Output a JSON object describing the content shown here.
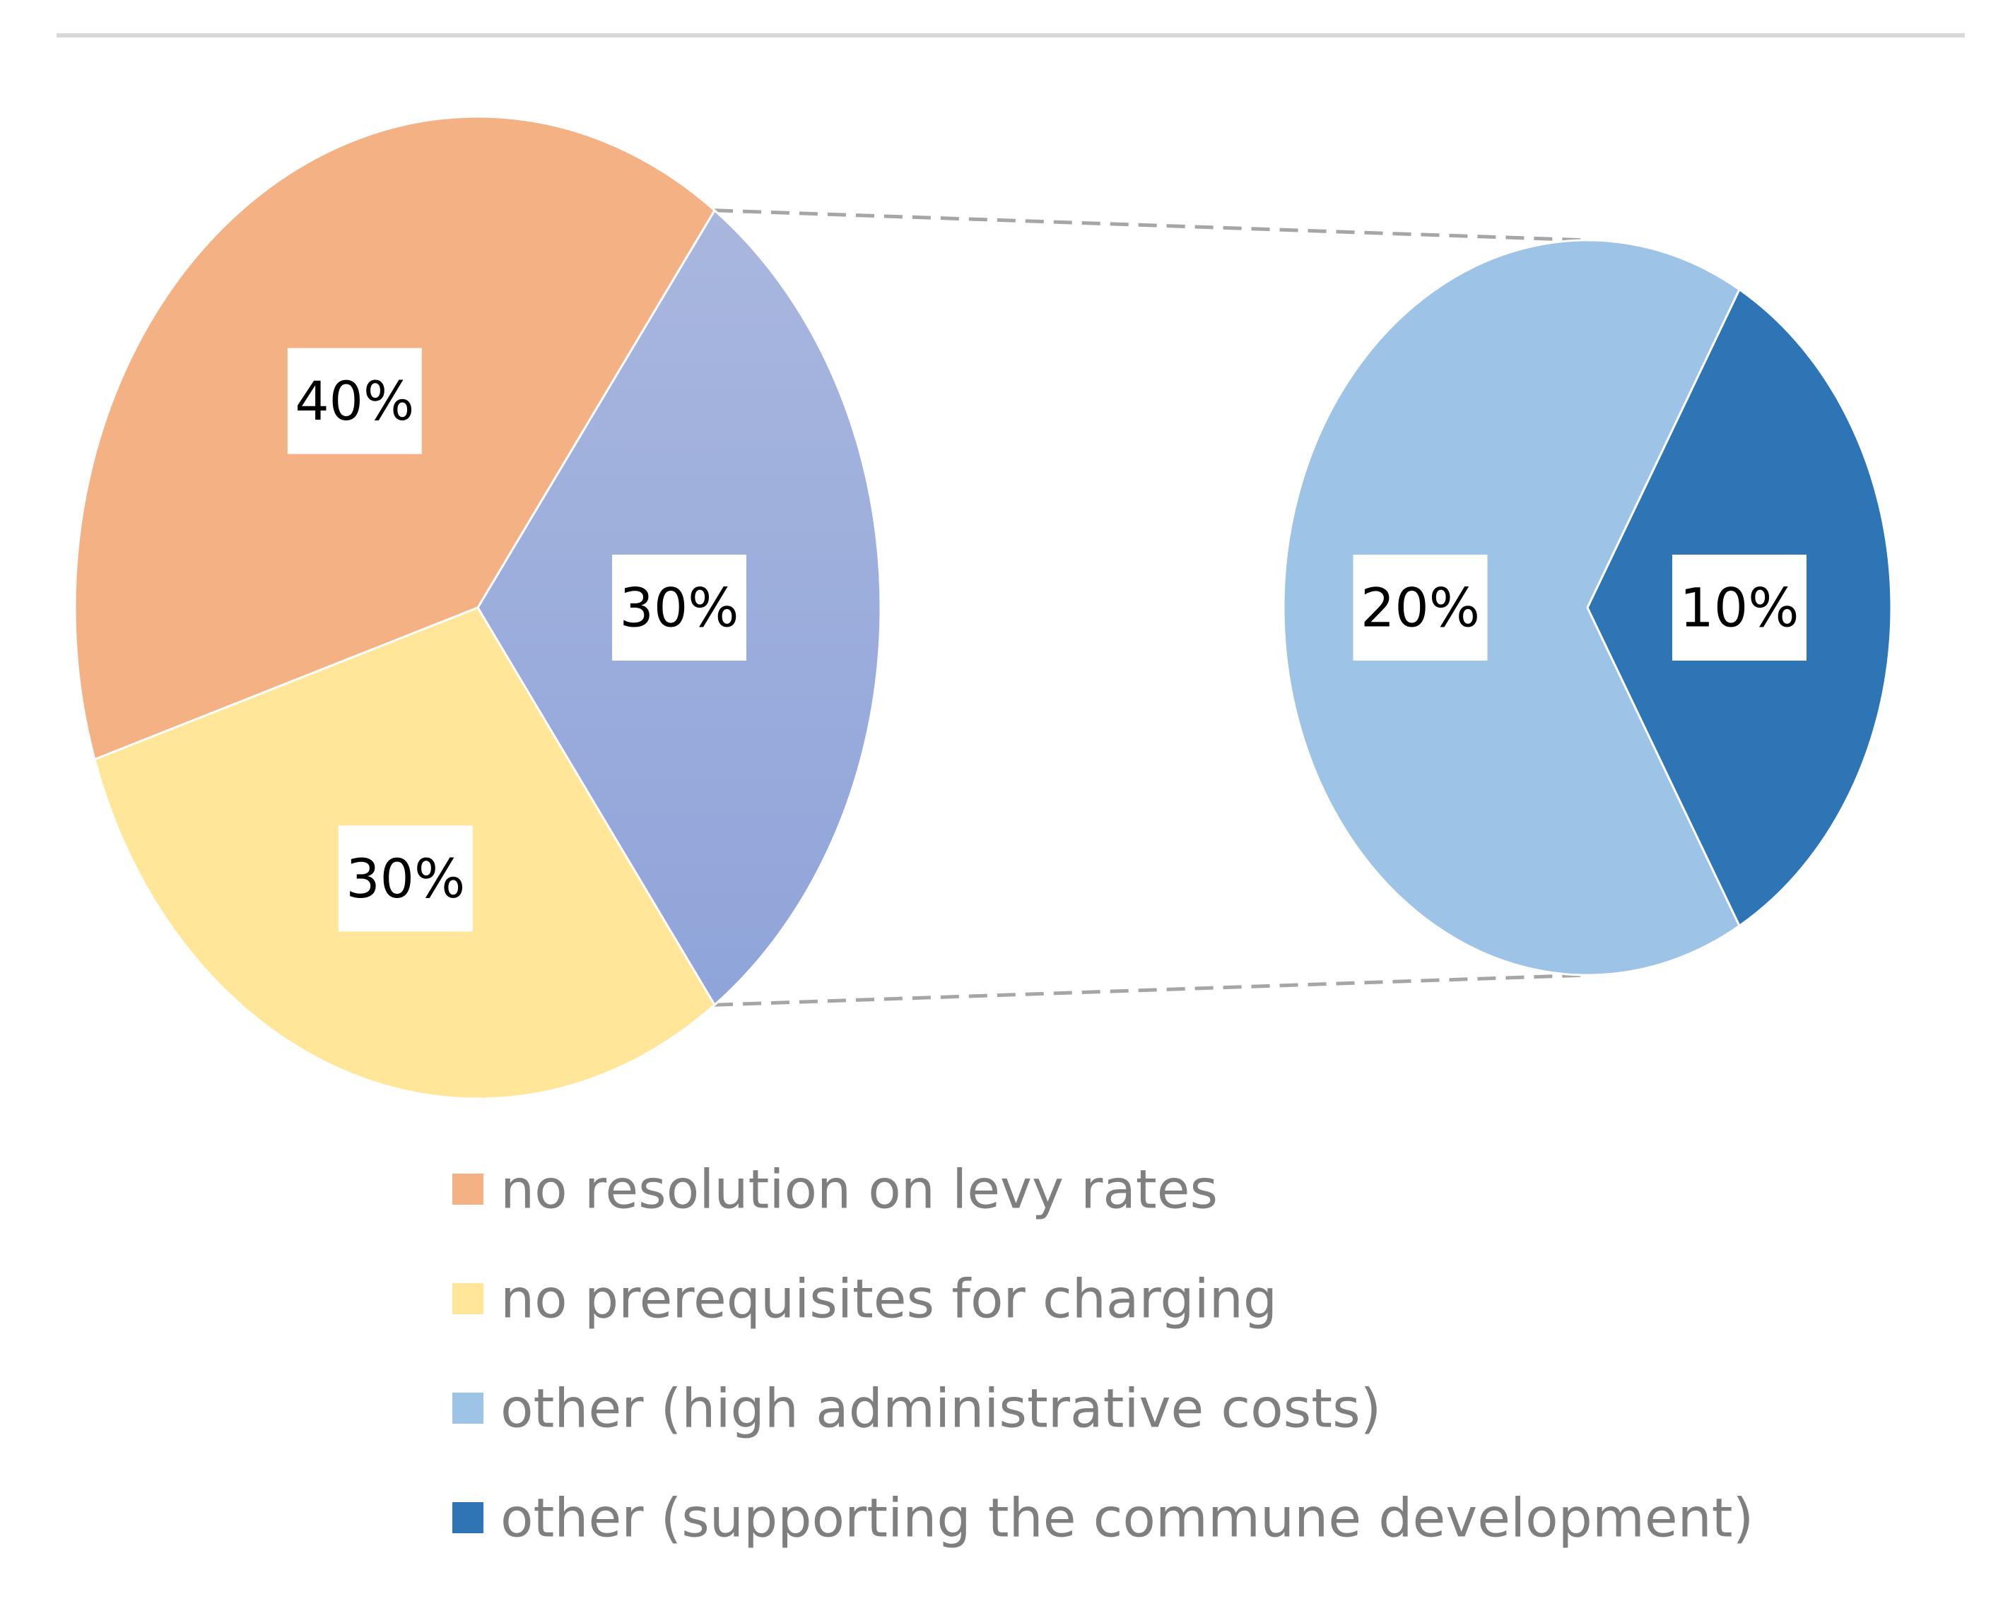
{
  "chart_data": {
    "type": "pie",
    "subtype": "pie-of-pie",
    "title": "",
    "categories": [
      "no resolution on levy rates",
      "no prerequisites for charging",
      "other (high administrative costs)",
      "other (supporting the commune development)"
    ],
    "main_pie": {
      "slices": [
        {
          "name": "other",
          "value": 30,
          "label": "30%",
          "color": "#98A9D9"
        },
        {
          "name": "no resolution on levy rates",
          "value": 40,
          "label": "40%",
          "color": "#F4B183"
        },
        {
          "name": "no prerequisites for charging",
          "value": 30,
          "label": "30%",
          "color": "#FFE699"
        }
      ]
    },
    "secondary_pie": {
      "slices": [
        {
          "name": "other (supporting the commune development)",
          "value": 10,
          "label": "10%",
          "color": "#2E75B6"
        },
        {
          "name": "other (high administrative costs)",
          "value": 20,
          "label": "20%",
          "color": "#9DC3E6"
        }
      ]
    },
    "legend": {
      "placement": "bottom-center",
      "items": [
        {
          "label": "no resolution on levy rates",
          "color": "#F4B183"
        },
        {
          "label": "no prerequisites for charging",
          "color": "#FFE699"
        },
        {
          "label": "other (high administrative costs)",
          "color": "#9DC3E6"
        },
        {
          "label": "other (supporting the commune development)",
          "color": "#2E75B6"
        }
      ]
    },
    "colors": {
      "top_rule": "#D9D9D9",
      "connector": "#A6A6A6",
      "legend_text": "#7F7F7F",
      "label_text": "#000000",
      "label_box": "#FFFFFF"
    }
  }
}
